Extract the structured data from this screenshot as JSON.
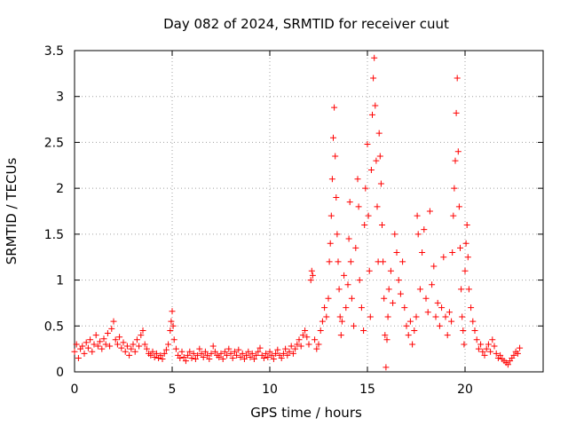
{
  "chart_data": {
    "type": "scatter",
    "title": "Day 082 of 2024, SRMTID for receiver cuut",
    "xlabel": "GPS time / hours",
    "ylabel": "SRMTID / TECUs",
    "xlim": [
      0,
      24
    ],
    "ylim": [
      0,
      3.5
    ],
    "xticks": [
      0,
      5,
      10,
      15,
      20
    ],
    "xtick_labels": [
      "0",
      "5",
      "10",
      "15",
      "20"
    ],
    "yticks": [
      0,
      0.5,
      1,
      1.5,
      2,
      2.5,
      3,
      3.5
    ],
    "ytick_labels": [
      "0",
      "0.5",
      "1",
      "1.5",
      "2",
      "2.5",
      "3",
      "3.5"
    ],
    "grid": true,
    "marker": "+",
    "series": [
      {
        "name": "SRMTID",
        "color": "#ff0000",
        "points": [
          [
            0.0,
            0.22
          ],
          [
            0.1,
            0.3
          ],
          [
            0.2,
            0.15
          ],
          [
            0.3,
            0.25
          ],
          [
            0.4,
            0.28
          ],
          [
            0.5,
            0.2
          ],
          [
            0.6,
            0.32
          ],
          [
            0.7,
            0.26
          ],
          [
            0.8,
            0.35
          ],
          [
            0.9,
            0.22
          ],
          [
            1.0,
            0.3
          ],
          [
            1.1,
            0.4
          ],
          [
            1.2,
            0.28
          ],
          [
            1.3,
            0.33
          ],
          [
            1.4,
            0.25
          ],
          [
            1.5,
            0.36
          ],
          [
            1.6,
            0.3
          ],
          [
            1.7,
            0.42
          ],
          [
            1.8,
            0.28
          ],
          [
            1.9,
            0.47
          ],
          [
            2.0,
            0.55
          ],
          [
            2.1,
            0.35
          ],
          [
            2.2,
            0.3
          ],
          [
            2.3,
            0.38
          ],
          [
            2.4,
            0.26
          ],
          [
            2.5,
            0.32
          ],
          [
            2.6,
            0.22
          ],
          [
            2.7,
            0.28
          ],
          [
            2.8,
            0.18
          ],
          [
            2.9,
            0.25
          ],
          [
            3.0,
            0.3
          ],
          [
            3.1,
            0.22
          ],
          [
            3.2,
            0.35
          ],
          [
            3.3,
            0.28
          ],
          [
            3.4,
            0.4
          ],
          [
            3.5,
            0.45
          ],
          [
            3.6,
            0.3
          ],
          [
            3.7,
            0.25
          ],
          [
            3.8,
            0.2
          ],
          [
            3.9,
            0.18
          ],
          [
            4.0,
            0.22
          ],
          [
            4.1,
            0.16
          ],
          [
            4.2,
            0.2
          ],
          [
            4.3,
            0.15
          ],
          [
            4.4,
            0.18
          ],
          [
            4.5,
            0.14
          ],
          [
            4.6,
            0.2
          ],
          [
            4.7,
            0.24
          ],
          [
            4.8,
            0.3
          ],
          [
            4.9,
            0.45
          ],
          [
            4.95,
            0.55
          ],
          [
            5.0,
            0.66
          ],
          [
            5.05,
            0.5
          ],
          [
            5.1,
            0.35
          ],
          [
            5.2,
            0.25
          ],
          [
            5.3,
            0.18
          ],
          [
            5.4,
            0.15
          ],
          [
            5.5,
            0.22
          ],
          [
            5.6,
            0.16
          ],
          [
            5.7,
            0.12
          ],
          [
            5.8,
            0.18
          ],
          [
            5.9,
            0.22
          ],
          [
            6.0,
            0.15
          ],
          [
            6.1,
            0.2
          ],
          [
            6.2,
            0.14
          ],
          [
            6.3,
            0.18
          ],
          [
            6.4,
            0.25
          ],
          [
            6.5,
            0.2
          ],
          [
            6.6,
            0.16
          ],
          [
            6.7,
            0.22
          ],
          [
            6.8,
            0.18
          ],
          [
            6.9,
            0.14
          ],
          [
            7.0,
            0.2
          ],
          [
            7.1,
            0.28
          ],
          [
            7.2,
            0.22
          ],
          [
            7.3,
            0.18
          ],
          [
            7.4,
            0.16
          ],
          [
            7.5,
            0.2
          ],
          [
            7.6,
            0.14
          ],
          [
            7.7,
            0.22
          ],
          [
            7.8,
            0.18
          ],
          [
            7.9,
            0.25
          ],
          [
            8.0,
            0.2
          ],
          [
            8.1,
            0.15
          ],
          [
            8.2,
            0.22
          ],
          [
            8.3,
            0.18
          ],
          [
            8.4,
            0.24
          ],
          [
            8.5,
            0.16
          ],
          [
            8.6,
            0.2
          ],
          [
            8.7,
            0.14
          ],
          [
            8.8,
            0.18
          ],
          [
            8.9,
            0.22
          ],
          [
            9.0,
            0.16
          ],
          [
            9.1,
            0.2
          ],
          [
            9.2,
            0.14
          ],
          [
            9.3,
            0.18
          ],
          [
            9.4,
            0.22
          ],
          [
            9.5,
            0.26
          ],
          [
            9.6,
            0.18
          ],
          [
            9.7,
            0.15
          ],
          [
            9.8,
            0.2
          ],
          [
            9.9,
            0.16
          ],
          [
            10.0,
            0.22
          ],
          [
            10.1,
            0.18
          ],
          [
            10.2,
            0.14
          ],
          [
            10.3,
            0.2
          ],
          [
            10.4,
            0.24
          ],
          [
            10.5,
            0.18
          ],
          [
            10.6,
            0.15
          ],
          [
            10.7,
            0.2
          ],
          [
            10.8,
            0.25
          ],
          [
            10.9,
            0.18
          ],
          [
            11.0,
            0.22
          ],
          [
            11.1,
            0.28
          ],
          [
            11.2,
            0.2
          ],
          [
            11.3,
            0.25
          ],
          [
            11.4,
            0.3
          ],
          [
            11.5,
            0.35
          ],
          [
            11.6,
            0.28
          ],
          [
            11.7,
            0.4
          ],
          [
            11.8,
            0.45
          ],
          [
            11.9,
            0.38
          ],
          [
            12.0,
            0.3
          ],
          [
            12.1,
            1.0
          ],
          [
            12.15,
            1.1
          ],
          [
            12.2,
            1.05
          ],
          [
            12.3,
            0.35
          ],
          [
            12.4,
            0.25
          ],
          [
            12.5,
            0.3
          ],
          [
            12.6,
            0.45
          ],
          [
            12.7,
            0.55
          ],
          [
            12.8,
            0.7
          ],
          [
            12.9,
            0.6
          ],
          [
            13.0,
            0.8
          ],
          [
            13.05,
            1.2
          ],
          [
            13.1,
            1.4
          ],
          [
            13.15,
            1.7
          ],
          [
            13.2,
            2.1
          ],
          [
            13.25,
            2.55
          ],
          [
            13.3,
            2.88
          ],
          [
            13.35,
            2.35
          ],
          [
            13.4,
            1.9
          ],
          [
            13.45,
            1.5
          ],
          [
            13.5,
            1.2
          ],
          [
            13.55,
            0.9
          ],
          [
            13.6,
            0.6
          ],
          [
            13.65,
            0.4
          ],
          [
            13.7,
            0.55
          ],
          [
            13.8,
            1.05
          ],
          [
            13.9,
            0.7
          ],
          [
            14.0,
            0.95
          ],
          [
            14.05,
            1.45
          ],
          [
            14.1,
            1.85
          ],
          [
            14.15,
            1.2
          ],
          [
            14.2,
            0.8
          ],
          [
            14.3,
            0.5
          ],
          [
            14.4,
            1.35
          ],
          [
            14.5,
            2.1
          ],
          [
            14.55,
            1.8
          ],
          [
            14.6,
            1.0
          ],
          [
            14.7,
            0.7
          ],
          [
            14.8,
            0.45
          ],
          [
            14.85,
            1.6
          ],
          [
            14.9,
            2.0
          ],
          [
            15.0,
            2.48
          ],
          [
            15.05,
            1.7
          ],
          [
            15.1,
            1.1
          ],
          [
            15.15,
            0.6
          ],
          [
            15.2,
            2.2
          ],
          [
            15.25,
            2.8
          ],
          [
            15.3,
            3.2
          ],
          [
            15.35,
            3.42
          ],
          [
            15.4,
            2.9
          ],
          [
            15.45,
            2.3
          ],
          [
            15.5,
            1.8
          ],
          [
            15.55,
            1.2
          ],
          [
            15.6,
            2.6
          ],
          [
            15.65,
            2.35
          ],
          [
            15.7,
            2.05
          ],
          [
            15.75,
            1.6
          ],
          [
            15.8,
            1.2
          ],
          [
            15.85,
            0.8
          ],
          [
            15.9,
            0.4
          ],
          [
            15.95,
            0.05
          ],
          [
            16.0,
            0.35
          ],
          [
            16.05,
            0.6
          ],
          [
            16.1,
            0.9
          ],
          [
            16.2,
            1.1
          ],
          [
            16.3,
            0.75
          ],
          [
            16.4,
            1.5
          ],
          [
            16.5,
            1.3
          ],
          [
            16.6,
            1.0
          ],
          [
            16.7,
            0.85
          ],
          [
            16.8,
            1.2
          ],
          [
            16.9,
            0.7
          ],
          [
            17.0,
            0.5
          ],
          [
            17.1,
            0.4
          ],
          [
            17.2,
            0.55
          ],
          [
            17.3,
            0.3
          ],
          [
            17.4,
            0.45
          ],
          [
            17.5,
            0.6
          ],
          [
            17.55,
            1.7
          ],
          [
            17.6,
            1.5
          ],
          [
            17.7,
            0.9
          ],
          [
            17.8,
            1.3
          ],
          [
            17.9,
            1.55
          ],
          [
            18.0,
            0.8
          ],
          [
            18.1,
            0.65
          ],
          [
            18.2,
            1.75
          ],
          [
            18.3,
            0.95
          ],
          [
            18.4,
            1.15
          ],
          [
            18.5,
            0.6
          ],
          [
            18.6,
            0.75
          ],
          [
            18.7,
            0.5
          ],
          [
            18.8,
            0.7
          ],
          [
            18.9,
            1.25
          ],
          [
            19.0,
            0.6
          ],
          [
            19.1,
            0.4
          ],
          [
            19.2,
            0.65
          ],
          [
            19.3,
            0.55
          ],
          [
            19.35,
            1.3
          ],
          [
            19.4,
            1.7
          ],
          [
            19.45,
            2.0
          ],
          [
            19.5,
            2.3
          ],
          [
            19.55,
            2.82
          ],
          [
            19.6,
            3.2
          ],
          [
            19.65,
            2.4
          ],
          [
            19.7,
            1.8
          ],
          [
            19.75,
            1.35
          ],
          [
            19.8,
            0.9
          ],
          [
            19.85,
            0.6
          ],
          [
            19.9,
            0.45
          ],
          [
            19.95,
            0.3
          ],
          [
            20.0,
            1.1
          ],
          [
            20.05,
            1.4
          ],
          [
            20.1,
            1.6
          ],
          [
            20.15,
            1.25
          ],
          [
            20.2,
            0.9
          ],
          [
            20.3,
            0.7
          ],
          [
            20.4,
            0.55
          ],
          [
            20.5,
            0.45
          ],
          [
            20.6,
            0.35
          ],
          [
            20.7,
            0.25
          ],
          [
            20.8,
            0.3
          ],
          [
            20.9,
            0.22
          ],
          [
            21.0,
            0.18
          ],
          [
            21.1,
            0.25
          ],
          [
            21.2,
            0.3
          ],
          [
            21.3,
            0.22
          ],
          [
            21.4,
            0.35
          ],
          [
            21.5,
            0.28
          ],
          [
            21.6,
            0.2
          ],
          [
            21.7,
            0.15
          ],
          [
            21.8,
            0.18
          ],
          [
            21.9,
            0.14
          ],
          [
            22.0,
            0.12
          ],
          [
            22.1,
            0.1
          ],
          [
            22.2,
            0.08
          ],
          [
            22.3,
            0.12
          ],
          [
            22.4,
            0.15
          ],
          [
            22.5,
            0.18
          ],
          [
            22.6,
            0.22
          ],
          [
            22.7,
            0.2
          ],
          [
            22.8,
            0.26
          ]
        ]
      }
    ]
  }
}
